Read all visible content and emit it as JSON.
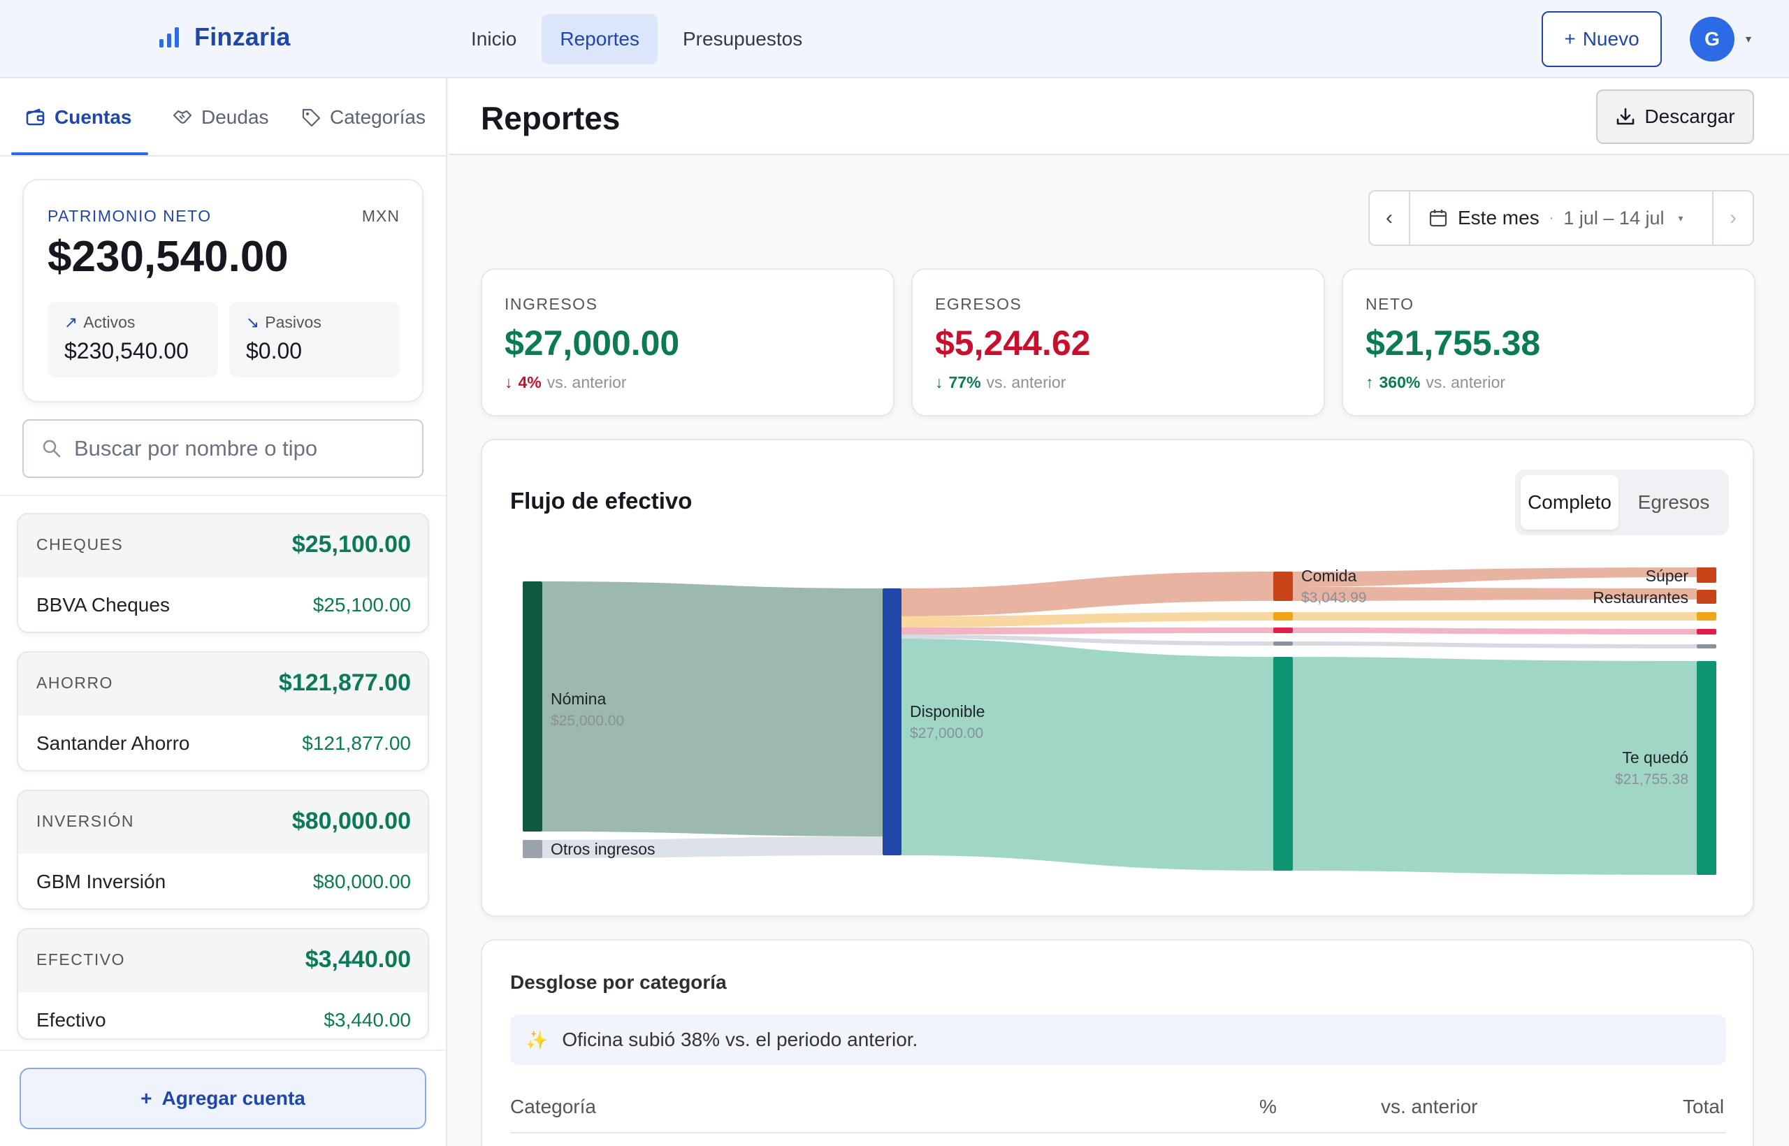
{
  "header": {
    "brand": "Finzaria",
    "nav": [
      "Inicio",
      "Reportes",
      "Presupuestos"
    ],
    "active_nav": "Reportes",
    "new_button": "Nuevo",
    "avatar_initial": "G"
  },
  "sidebar": {
    "tabs": [
      "Cuentas",
      "Deudas",
      "Categorías"
    ],
    "active_tab": "Cuentas",
    "networth": {
      "label": "PATRIMONIO NETO",
      "currency": "MXN",
      "value": "$230,540.00",
      "assets_label": "Activos",
      "assets_value": "$230,540.00",
      "liabilities_label": "Pasivos",
      "liabilities_value": "$0.00"
    },
    "search_placeholder": "Buscar por nombre o tipo",
    "account_groups": [
      {
        "group": "CHEQUES",
        "total": "$25,100.00",
        "account": "BBVA Cheques",
        "amount": "$25,100.00"
      },
      {
        "group": "AHORRO",
        "total": "$121,877.00",
        "account": "Santander Ahorro",
        "amount": "$121,877.00"
      },
      {
        "group": "INVERSIÓN",
        "total": "$80,000.00",
        "account": "GBM Inversión",
        "amount": "$80,000.00"
      },
      {
        "group": "EFECTIVO",
        "total": "$3,440.00",
        "account": "Efectivo",
        "amount": "$3,440.00"
      }
    ],
    "add_account": "Agregar cuenta"
  },
  "main": {
    "title": "Reportes",
    "download": "Descargar",
    "period": {
      "label": "Este mes",
      "range": "1 jul – 14 jul"
    },
    "kpis": [
      {
        "label": "INGRESOS",
        "value": "$27,000.00",
        "delta": "4%",
        "direction": "down",
        "vs": "vs. anterior",
        "color": "#0b7a55",
        "delta_color": "#c8102e"
      },
      {
        "label": "EGRESOS",
        "value": "$5,244.62",
        "delta": "77%",
        "direction": "down",
        "vs": "vs. anterior",
        "color": "#c8102e",
        "delta_color": "#0b7a55"
      },
      {
        "label": "NETO",
        "value": "$21,755.38",
        "delta": "360%",
        "direction": "up",
        "vs": "vs. anterior",
        "color": "#0b7a55",
        "delta_color": "#0b7a55"
      }
    ],
    "flow": {
      "title": "Flujo de efectivo",
      "modes": [
        "Completo",
        "Egresos"
      ],
      "active_mode": "Completo",
      "labels": {
        "nomina": "Nómina",
        "nomina_value": "$25,000.00",
        "otros": "Otros ingresos",
        "disponible": "Disponible",
        "disponible_value": "$27,000.00",
        "comida": "Comida",
        "comida_value": "$3,043.99",
        "super": "Súper",
        "restaurantes": "Restaurantes",
        "tequedo": "Te quedó",
        "tequedo_value": "$21,755.38"
      }
    },
    "breakdown": {
      "title": "Desglose por categoría",
      "insight": "Oficina subió 38% vs. el periodo anterior.",
      "columns": [
        "Categoría",
        "%",
        "vs. anterior",
        "Total"
      ]
    }
  },
  "colors": {
    "brand": "#2047a8",
    "positive": "#0b7a55",
    "negative": "#c8102e"
  }
}
